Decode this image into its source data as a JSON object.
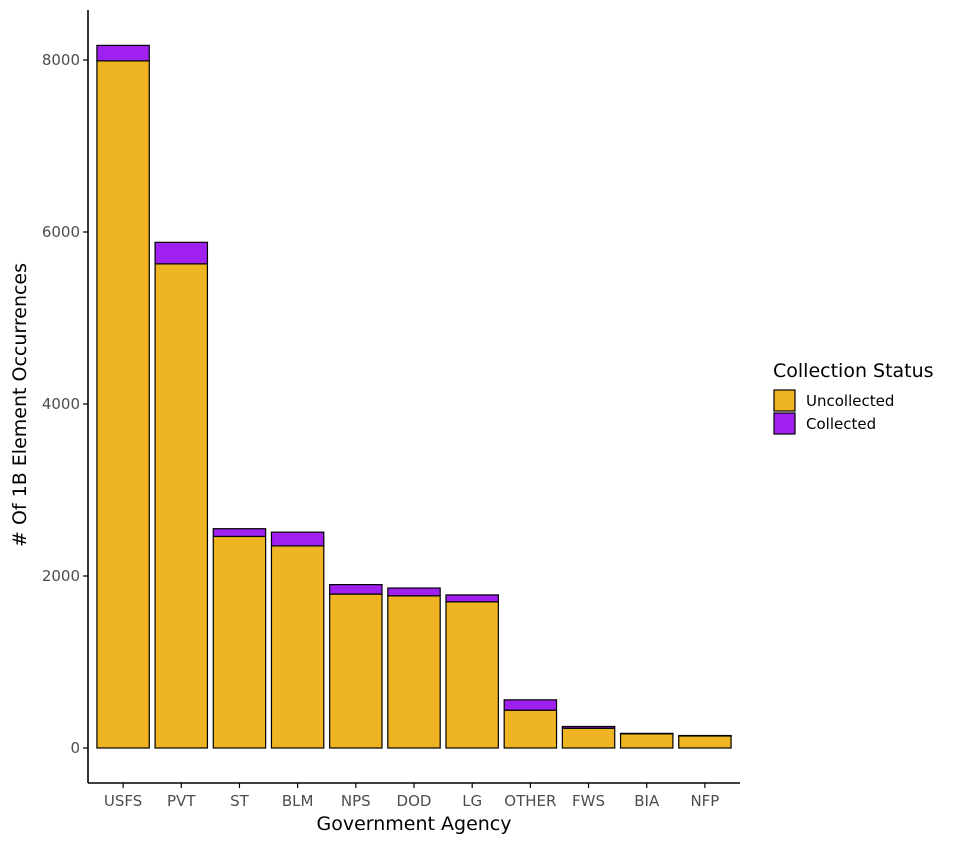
{
  "chart_data": {
    "type": "bar",
    "stacked": true,
    "categories": [
      "USFS",
      "PVT",
      "ST",
      "BLM",
      "NPS",
      "DOD",
      "LG",
      "OTHER",
      "FWS",
      "BIA",
      "NFP"
    ],
    "series": [
      {
        "name": "Uncollected",
        "color": "#EEB422",
        "values": [
          7990,
          5630,
          2460,
          2350,
          1790,
          1770,
          1700,
          440,
          230,
          165,
          140
        ]
      },
      {
        "name": "Collected",
        "color": "#A020F0",
        "values": [
          180,
          250,
          90,
          160,
          110,
          90,
          80,
          120,
          20,
          5,
          5
        ]
      }
    ],
    "xlabel": "Government Agency",
    "ylabel": "# Of 1B Element Occurrences",
    "ylim": [
      0,
      8560
    ],
    "yticks": [
      0,
      2000,
      4000,
      6000,
      8000
    ],
    "legend": {
      "title": "Collection Status",
      "position": "right",
      "entries": [
        "Uncollected",
        "Collected"
      ]
    },
    "grid": false
  }
}
